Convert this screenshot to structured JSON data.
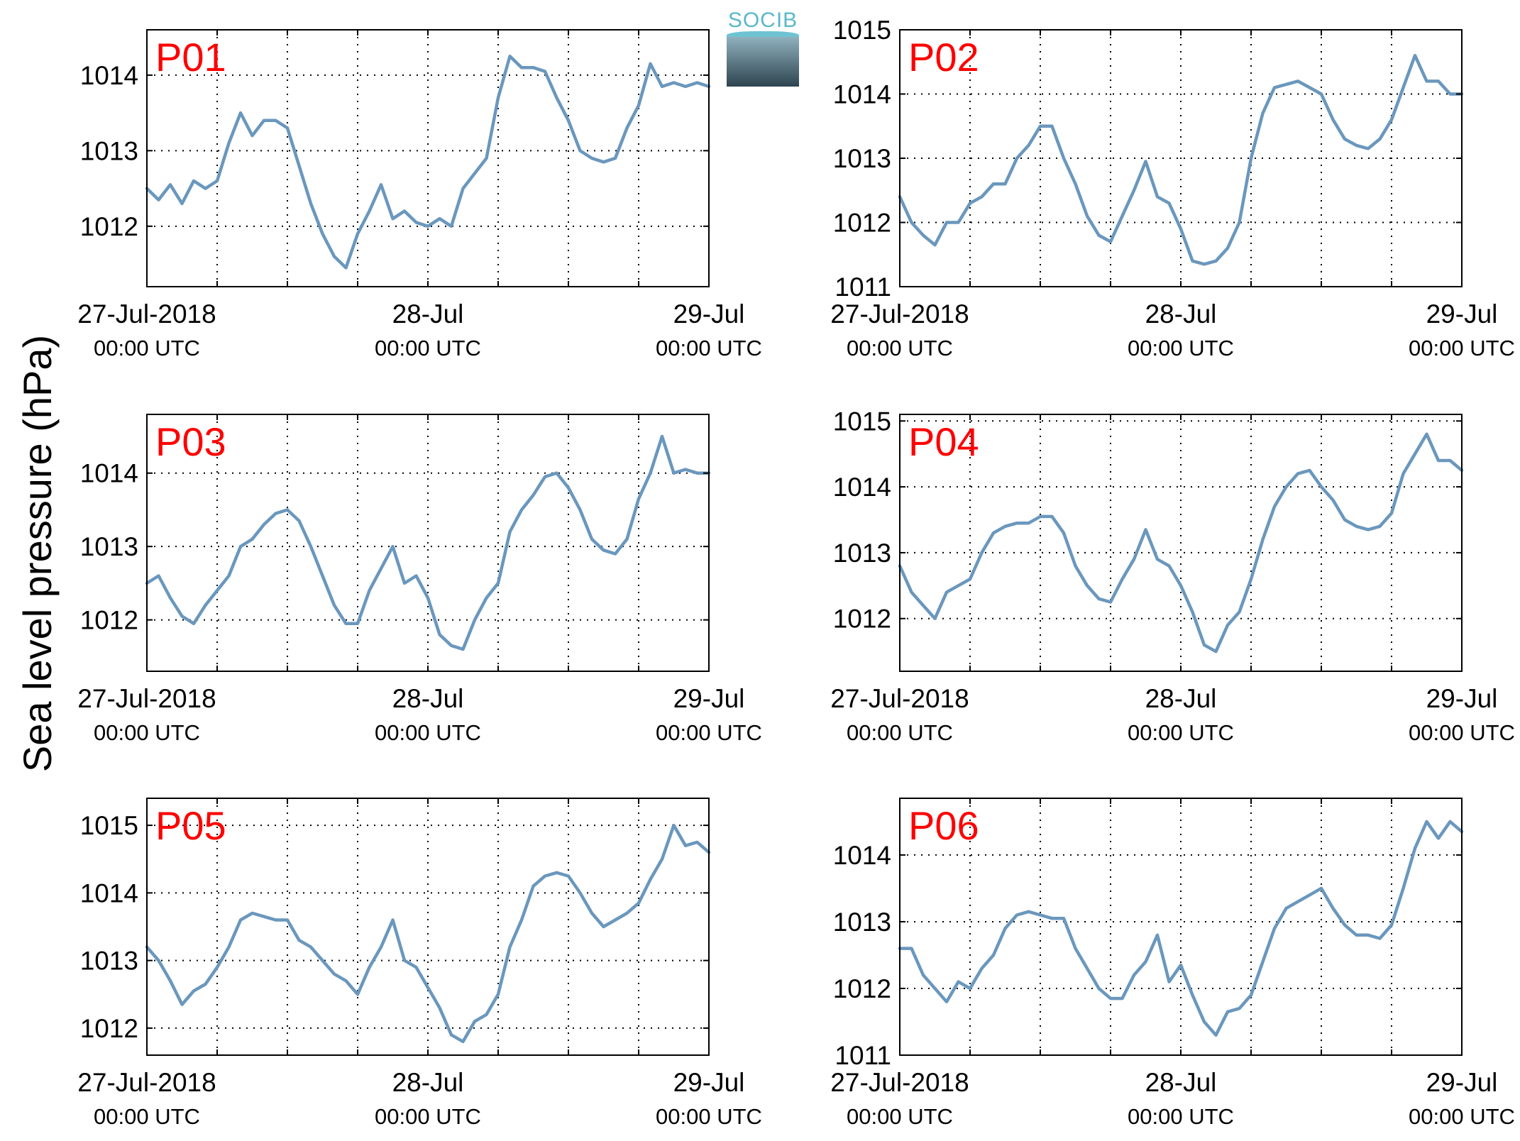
{
  "logo_text": "SOCIB",
  "ylabel": "Sea level pressure (hPa)",
  "x_tick_labels": [
    {
      "date": "27-Jul-2018",
      "time": "00:00 UTC"
    },
    {
      "date": "28-Jul",
      "time": "00:00 UTC"
    },
    {
      "date": "29-Jul",
      "time": "00:00 UTC"
    }
  ],
  "series_color": "#6a97bd",
  "label_color": "#ff0000",
  "chart_data": [
    {
      "type": "line",
      "title": "P01",
      "x_unit": "hours since 27-Jul-2018 00:00 UTC",
      "xlim": [
        0,
        48
      ],
      "ylim": [
        1011.2,
        1014.6
      ],
      "yticks": [
        1012,
        1013,
        1014
      ],
      "x": [
        0,
        1,
        2,
        3,
        4,
        5,
        6,
        7,
        8,
        9,
        10,
        11,
        12,
        13,
        14,
        15,
        16,
        17,
        18,
        19,
        20,
        21,
        22,
        23,
        24,
        25,
        26,
        27,
        28,
        29,
        30,
        31,
        32,
        33,
        34,
        35,
        36,
        37,
        38,
        39,
        40,
        41,
        42,
        43,
        44,
        45,
        46,
        47,
        48
      ],
      "y": [
        1012.5,
        1012.35,
        1012.55,
        1012.3,
        1012.6,
        1012.5,
        1012.6,
        1013.1,
        1013.5,
        1013.2,
        1013.4,
        1013.4,
        1013.3,
        1012.8,
        1012.3,
        1011.9,
        1011.6,
        1011.45,
        1011.9,
        1012.2,
        1012.55,
        1012.1,
        1012.2,
        1012.05,
        1012.0,
        1012.1,
        1012.0,
        1012.5,
        1012.7,
        1012.9,
        1013.7,
        1014.25,
        1014.1,
        1014.1,
        1014.05,
        1013.7,
        1013.4,
        1013.0,
        1012.9,
        1012.85,
        1012.9,
        1013.3,
        1013.6,
        1014.15,
        1013.85,
        1013.9,
        1013.85,
        1013.9,
        1013.85
      ]
    },
    {
      "type": "line",
      "title": "P02",
      "x_unit": "hours since 27-Jul-2018 00:00 UTC",
      "xlim": [
        0,
        48
      ],
      "ylim": [
        1011,
        1015
      ],
      "yticks": [
        1011,
        1012,
        1013,
        1014,
        1015
      ],
      "x": [
        0,
        1,
        2,
        3,
        4,
        5,
        6,
        7,
        8,
        9,
        10,
        11,
        12,
        13,
        14,
        15,
        16,
        17,
        18,
        19,
        20,
        21,
        22,
        23,
        24,
        25,
        26,
        27,
        28,
        29,
        30,
        31,
        32,
        33,
        34,
        35,
        36,
        37,
        38,
        39,
        40,
        41,
        42,
        43,
        44,
        45,
        46,
        47,
        48
      ],
      "y": [
        1012.4,
        1012.0,
        1011.8,
        1011.65,
        1012.0,
        1012.0,
        1012.3,
        1012.4,
        1012.6,
        1012.6,
        1013.0,
        1013.2,
        1013.5,
        1013.5,
        1013.0,
        1012.6,
        1012.1,
        1011.8,
        1011.7,
        1012.1,
        1012.5,
        1012.95,
        1012.4,
        1012.3,
        1011.9,
        1011.4,
        1011.35,
        1011.4,
        1011.6,
        1012.0,
        1013.0,
        1013.7,
        1014.1,
        1014.15,
        1014.2,
        1014.1,
        1014.0,
        1013.6,
        1013.3,
        1013.2,
        1013.15,
        1013.3,
        1013.6,
        1014.1,
        1014.6,
        1014.2,
        1014.2,
        1014.0,
        1014.0
      ]
    },
    {
      "type": "line",
      "title": "P03",
      "x_unit": "hours since 27-Jul-2018 00:00 UTC",
      "xlim": [
        0,
        48
      ],
      "ylim": [
        1011.3,
        1014.8
      ],
      "yticks": [
        1012,
        1013,
        1014
      ],
      "x": [
        0,
        1,
        2,
        3,
        4,
        5,
        6,
        7,
        8,
        9,
        10,
        11,
        12,
        13,
        14,
        15,
        16,
        17,
        18,
        19,
        20,
        21,
        22,
        23,
        24,
        25,
        26,
        27,
        28,
        29,
        30,
        31,
        32,
        33,
        34,
        35,
        36,
        37,
        38,
        39,
        40,
        41,
        42,
        43,
        44,
        45,
        46,
        47,
        48
      ],
      "y": [
        1012.5,
        1012.6,
        1012.3,
        1012.05,
        1011.95,
        1012.2,
        1012.4,
        1012.6,
        1013.0,
        1013.1,
        1013.3,
        1013.45,
        1013.5,
        1013.35,
        1013.0,
        1012.6,
        1012.2,
        1011.95,
        1011.95,
        1012.4,
        1012.7,
        1013.0,
        1012.5,
        1012.6,
        1012.3,
        1011.8,
        1011.65,
        1011.6,
        1012.0,
        1012.3,
        1012.5,
        1013.2,
        1013.5,
        1013.7,
        1013.95,
        1014.0,
        1013.8,
        1013.5,
        1013.1,
        1012.95,
        1012.9,
        1013.1,
        1013.65,
        1014.0,
        1014.5,
        1014.0,
        1014.05,
        1014.0,
        1014.0
      ]
    },
    {
      "type": "line",
      "title": "P04",
      "x_unit": "hours since 27-Jul-2018 00:00 UTC",
      "xlim": [
        0,
        48
      ],
      "ylim": [
        1011.2,
        1015.1
      ],
      "yticks": [
        1012,
        1013,
        1014,
        1015
      ],
      "x": [
        0,
        1,
        2,
        3,
        4,
        5,
        6,
        7,
        8,
        9,
        10,
        11,
        12,
        13,
        14,
        15,
        16,
        17,
        18,
        19,
        20,
        21,
        22,
        23,
        24,
        25,
        26,
        27,
        28,
        29,
        30,
        31,
        32,
        33,
        34,
        35,
        36,
        37,
        38,
        39,
        40,
        41,
        42,
        43,
        44,
        45,
        46,
        47,
        48
      ],
      "y": [
        1012.8,
        1012.4,
        1012.2,
        1012.0,
        1012.4,
        1012.5,
        1012.6,
        1013.0,
        1013.3,
        1013.4,
        1013.45,
        1013.45,
        1013.55,
        1013.55,
        1013.3,
        1012.8,
        1012.5,
        1012.3,
        1012.25,
        1012.6,
        1012.9,
        1013.35,
        1012.9,
        1012.8,
        1012.5,
        1012.1,
        1011.6,
        1011.5,
        1011.9,
        1012.1,
        1012.6,
        1013.2,
        1013.7,
        1014.0,
        1014.2,
        1014.25,
        1014.0,
        1013.8,
        1013.5,
        1013.4,
        1013.35,
        1013.4,
        1013.6,
        1014.2,
        1014.5,
        1014.8,
        1014.4,
        1014.4,
        1014.25
      ]
    },
    {
      "type": "line",
      "title": "P05",
      "x_unit": "hours since 27-Jul-2018 00:00 UTC",
      "xlim": [
        0,
        48
      ],
      "ylim": [
        1011.6,
        1015.4
      ],
      "yticks": [
        1012,
        1013,
        1014,
        1015
      ],
      "x": [
        0,
        1,
        2,
        3,
        4,
        5,
        6,
        7,
        8,
        9,
        10,
        11,
        12,
        13,
        14,
        15,
        16,
        17,
        18,
        19,
        20,
        21,
        22,
        23,
        24,
        25,
        26,
        27,
        28,
        29,
        30,
        31,
        32,
        33,
        34,
        35,
        36,
        37,
        38,
        39,
        40,
        41,
        42,
        43,
        44,
        45,
        46,
        47,
        48
      ],
      "y": [
        1013.2,
        1013.0,
        1012.7,
        1012.35,
        1012.55,
        1012.65,
        1012.9,
        1013.2,
        1013.6,
        1013.7,
        1013.65,
        1013.6,
        1013.6,
        1013.3,
        1013.2,
        1013.0,
        1012.8,
        1012.7,
        1012.5,
        1012.9,
        1013.2,
        1013.6,
        1013.0,
        1012.9,
        1012.6,
        1012.3,
        1011.9,
        1011.8,
        1012.1,
        1012.2,
        1012.5,
        1013.2,
        1013.6,
        1014.1,
        1014.25,
        1014.3,
        1014.25,
        1014.0,
        1013.7,
        1013.5,
        1013.6,
        1013.7,
        1013.85,
        1014.2,
        1014.5,
        1015.0,
        1014.7,
        1014.75,
        1014.6
      ]
    },
    {
      "type": "line",
      "title": "P06",
      "x_unit": "hours since 27-Jul-2018 00:00 UTC",
      "xlim": [
        0,
        48
      ],
      "ylim": [
        1011,
        1014.85
      ],
      "yticks": [
        1011,
        1012,
        1013,
        1014
      ],
      "x": [
        0,
        1,
        2,
        3,
        4,
        5,
        6,
        7,
        8,
        9,
        10,
        11,
        12,
        13,
        14,
        15,
        16,
        17,
        18,
        19,
        20,
        21,
        22,
        23,
        24,
        25,
        26,
        27,
        28,
        29,
        30,
        31,
        32,
        33,
        34,
        35,
        36,
        37,
        38,
        39,
        40,
        41,
        42,
        43,
        44,
        45,
        46,
        47,
        48
      ],
      "y": [
        1012.6,
        1012.6,
        1012.2,
        1012.0,
        1011.8,
        1012.1,
        1012.0,
        1012.3,
        1012.5,
        1012.9,
        1013.1,
        1013.15,
        1013.1,
        1013.05,
        1013.05,
        1012.6,
        1012.3,
        1012.0,
        1011.85,
        1011.85,
        1012.2,
        1012.4,
        1012.8,
        1012.1,
        1012.35,
        1011.9,
        1011.5,
        1011.3,
        1011.65,
        1011.7,
        1011.9,
        1012.4,
        1012.9,
        1013.2,
        1013.3,
        1013.4,
        1013.5,
        1013.2,
        1012.95,
        1012.8,
        1012.8,
        1012.75,
        1012.95,
        1013.5,
        1014.1,
        1014.5,
        1014.25,
        1014.5,
        1014.35
      ]
    }
  ]
}
